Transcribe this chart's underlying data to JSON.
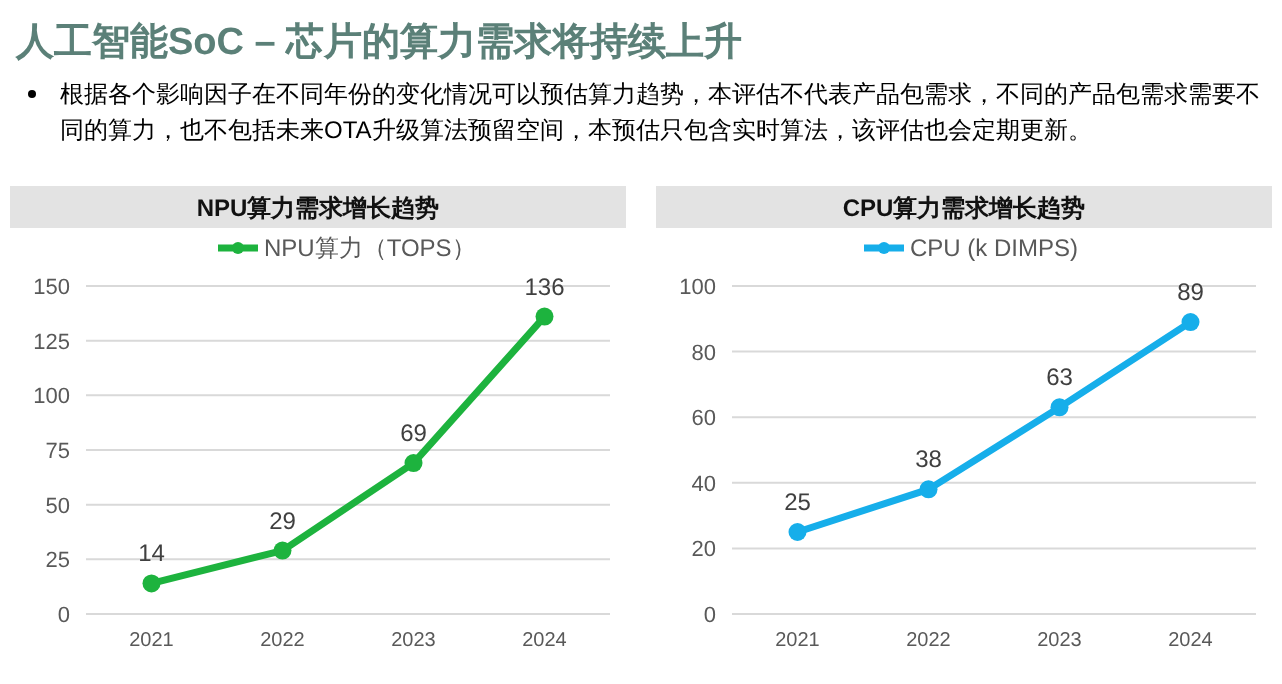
{
  "chart_data": [
    {
      "type": "other",
      "title": "人工智能SoC – 芯片的算力需求将持续上升",
      "annotations": [
        "根据各个影响因子在不同年份的变化情况可以预估算力趋势，本评估不代表产品包需求，不同的产品包需求需要不同的算力，也不包括未来OTA升级算法预留空间，本预估只包含实时算法，该评估也会定期更新。"
      ]
    },
    {
      "type": "line",
      "title": "NPU算力需求增长趋势",
      "categories": [
        "2021",
        "2022",
        "2023",
        "2024"
      ],
      "series": [
        {
          "name": "NPU算力（TOPS）",
          "color": "#1db33e",
          "values": [
            14,
            29,
            69,
            136
          ]
        }
      ],
      "ylim": [
        0,
        150
      ],
      "yticks": [
        0,
        25,
        50,
        75,
        100,
        125,
        150
      ],
      "grid": "y",
      "legend": "top",
      "marker": "circle",
      "data_labels": true
    },
    {
      "type": "line",
      "title": "CPU算力需求增长趋势",
      "categories": [
        "2021",
        "2022",
        "2023",
        "2024"
      ],
      "series": [
        {
          "name": "CPU (k DIMPS)",
          "color": "#16aeea",
          "values": [
            25,
            38,
            63,
            89
          ]
        }
      ],
      "ylim": [
        0,
        100
      ],
      "yticks": [
        0,
        20,
        40,
        60,
        80,
        100
      ],
      "grid": "y",
      "legend": "top",
      "marker": "circle",
      "data_labels": true
    }
  ]
}
